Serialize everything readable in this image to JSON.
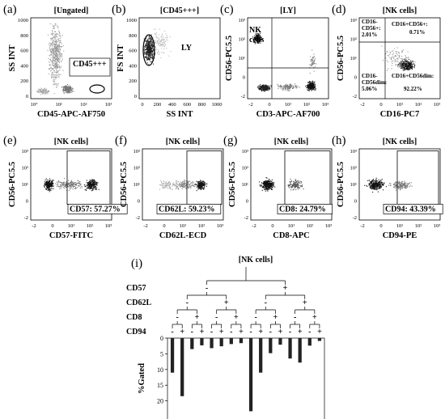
{
  "panels": [
    {
      "id": "a",
      "label": "(a)",
      "gate": "[Ungated]",
      "xlabel": "CD45-APC-AF750",
      "ylabel": "SS INT",
      "yticks": [
        "1000",
        "800",
        "600",
        "400",
        "200",
        "0"
      ],
      "xticks": [
        "10°",
        "10¹",
        "10²",
        "10³"
      ],
      "annotations": [
        "CD45+++"
      ]
    },
    {
      "id": "b",
      "label": "(b)",
      "gate": "[CD45+++]",
      "xlabel": "SS INT",
      "ylabel": "FS INT",
      "yticks": [
        "1000",
        "800",
        "600",
        "400",
        "200",
        "0"
      ],
      "xticks": [
        "0",
        "200",
        "400",
        "600",
        "800",
        "1000"
      ],
      "annotations": [
        "LY"
      ]
    },
    {
      "id": "c",
      "label": "(c)",
      "gate": "[LY]",
      "xlabel": "CD3-APC-AF700",
      "ylabel": "CD56-PC5.5",
      "yticks": [
        "10³",
        "10²",
        "10¹",
        "0",
        "-2"
      ],
      "xticks": [
        "-2",
        "0",
        "10¹",
        "10²",
        "10³"
      ],
      "annotations": [
        "NK",
        "cells"
      ]
    },
    {
      "id": "d",
      "label": "(d)",
      "gate": "[NK cells]",
      "xlabel": "CD16-PC7",
      "ylabel": "CD56-PC5.5",
      "yticks": [
        "10³",
        "10²",
        "10¹",
        "0",
        "-2"
      ],
      "xticks": [
        "-2",
        "0",
        "10¹",
        "10²",
        "10³"
      ],
      "annotations": [
        "CD16-",
        "CD56+:",
        "2.01%",
        "CD16+CD56+:",
        "0.71%",
        "CD16-",
        "CD56dim:",
        "5.06%",
        "CD16+CD56dim:",
        "92.22%"
      ]
    },
    {
      "id": "e",
      "label": "(e)",
      "gate": "[NK cells]",
      "xlabel": "CD57-FITC",
      "ylabel": "CD56-PC5.5",
      "yticks": [
        "10³",
        "10²",
        "10¹",
        "0",
        "-2"
      ],
      "xticks": [
        "-2",
        "0",
        "10¹",
        "10²",
        "10³"
      ],
      "annotations": [
        "CD57: 57.27%"
      ]
    },
    {
      "id": "f",
      "label": "(f)",
      "gate": "[NK cells]",
      "xlabel": "CD62L-ECD",
      "ylabel": "CD56-PC5.5",
      "yticks": [
        "10³",
        "10²",
        "10¹",
        "0",
        "-2"
      ],
      "xticks": [
        "-2",
        "0",
        "10¹",
        "10²",
        "10³"
      ],
      "annotations": [
        "CD62L: 59.23%"
      ]
    },
    {
      "id": "g",
      "label": "(g)",
      "gate": "[NK cells]",
      "xlabel": "CD8-APC",
      "ylabel": "CD56-PC5.5",
      "yticks": [
        "10³",
        "10²",
        "10¹",
        "0",
        "-2"
      ],
      "xticks": [
        "-2",
        "0",
        "10¹",
        "10²",
        "10³"
      ],
      "annotations": [
        "CD8: 24.79%"
      ]
    },
    {
      "id": "h",
      "label": "(h)",
      "gate": "[NK cells]",
      "xlabel": "CD94-PE",
      "ylabel": "CD56-PC5.5",
      "yticks": [
        "10³",
        "10²",
        "10¹",
        "0",
        "-2"
      ],
      "xticks": [
        "-2",
        "0",
        "10¹",
        "10²",
        "10³"
      ],
      "annotations": [
        "CD94: 43.39%"
      ]
    }
  ],
  "tree": {
    "label": "(i)",
    "root": "[NK cells]",
    "rows": [
      "CD57",
      "CD62L",
      "CD8",
      "CD94"
    ],
    "signs": {
      "minus": "-",
      "plus": "+"
    }
  },
  "chart_data": {
    "type": "bar",
    "title": "[NK cells]",
    "ylabel": "%Gated",
    "ylim": [
      0,
      25
    ],
    "yticks": [
      "0",
      "5",
      "10",
      "15",
      "20"
    ],
    "orientation": "downward",
    "categories": [
      "CD57- CD62L- CD8- CD94-",
      "CD57- CD62L- CD8- CD94+",
      "CD57- CD62L- CD8+ CD94-",
      "CD57- CD62L- CD8+ CD94+",
      "CD57- CD62L+ CD8- CD94-",
      "CD57- CD62L+ CD8- CD94+",
      "CD57- CD62L+ CD8+ CD94-",
      "CD57- CD62L+ CD8+ CD94+",
      "CD57+ CD62L- CD8- CD94-",
      "CD57+ CD62L- CD8- CD94+",
      "CD57+ CD62L- CD8+ CD94-",
      "CD57+ CD62L- CD8+ CD94+",
      "CD57+ CD62L+ CD8- CD94-",
      "CD57+ CD62L+ CD8- CD94+",
      "CD57+ CD62L+ CD8+ CD94-",
      "CD57+ CD62L+ CD8+ CD94+"
    ],
    "values": [
      11,
      18.5,
      3.5,
      2.3,
      3.2,
      2.6,
      1.9,
      1.6,
      23.3,
      11,
      4.8,
      2.1,
      6.5,
      7.8,
      2.4,
      0.9
    ]
  }
}
